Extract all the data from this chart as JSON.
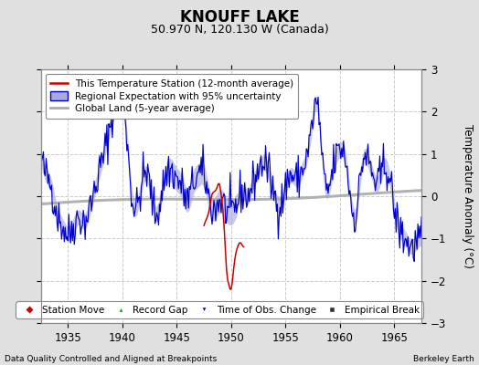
{
  "title": "KNOUFF LAKE",
  "subtitle": "50.970 N, 120.130 W (Canada)",
  "ylabel": "Temperature Anomaly (°C)",
  "xlabel_left": "Data Quality Controlled and Aligned at Breakpoints",
  "xlabel_right": "Berkeley Earth",
  "xlim": [
    1932.5,
    1967.5
  ],
  "ylim": [
    -3,
    3
  ],
  "yticks": [
    -3,
    -2,
    -1,
    0,
    1,
    2,
    3
  ],
  "xticks": [
    1935,
    1940,
    1945,
    1950,
    1955,
    1960,
    1965
  ],
  "bg_color": "#e0e0e0",
  "plot_bg_color": "#ffffff",
  "grid_color": "#cccccc",
  "blue_line_color": "#0000cc",
  "blue_fill_color": "#aaaadd",
  "red_line_color": "#cc0000",
  "gray_line_color": "#aaaaaa",
  "legend_labels": [
    "This Temperature Station (12-month average)",
    "Regional Expectation with 95% uncertainty",
    "Global Land (5-year average)"
  ],
  "bottom_legend": [
    {
      "marker": "D",
      "color": "#cc0000",
      "label": "Station Move"
    },
    {
      "marker": "^",
      "color": "#009900",
      "label": "Record Gap"
    },
    {
      "marker": "v",
      "color": "#0000cc",
      "label": "Time of Obs. Change"
    },
    {
      "marker": "s",
      "color": "#333333",
      "label": "Empirical Break"
    }
  ]
}
